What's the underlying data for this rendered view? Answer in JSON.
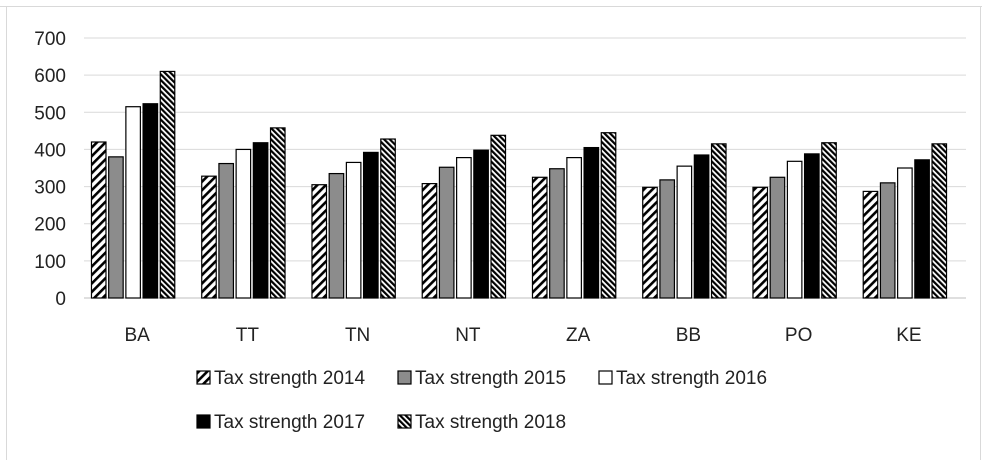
{
  "chart_data": {
    "type": "bar",
    "title": "",
    "xlabel": "",
    "ylabel": "",
    "ylim": [
      0,
      700
    ],
    "yticks": [
      0,
      100,
      200,
      300,
      400,
      500,
      600,
      700
    ],
    "grid": true,
    "legend_position": "bottom",
    "categories": [
      "BA",
      "TT",
      "TN",
      "NT",
      "ZA",
      "BB",
      "PO",
      "KE"
    ],
    "series": [
      {
        "name": "Tax strength 2014",
        "pattern": "diagonal-hatch",
        "color": "#000000",
        "values": [
          420,
          328,
          305,
          308,
          325,
          298,
          298,
          287
        ]
      },
      {
        "name": "Tax strength 2015",
        "pattern": "solid",
        "color": "#8c8c8c",
        "values": [
          380,
          362,
          335,
          352,
          348,
          318,
          325,
          310
        ]
      },
      {
        "name": "Tax strength 2016",
        "pattern": "solid",
        "color": "#ffffff",
        "values": [
          515,
          400,
          365,
          378,
          378,
          355,
          368,
          350
        ]
      },
      {
        "name": "Tax strength 2017",
        "pattern": "solid",
        "color": "#000000",
        "values": [
          523,
          418,
          392,
          398,
          405,
          385,
          388,
          372
        ]
      },
      {
        "name": "Tax strength 2018",
        "pattern": "dense-hatch",
        "color": "#000000",
        "values": [
          610,
          458,
          428,
          438,
          445,
          415,
          418,
          415
        ]
      }
    ]
  }
}
